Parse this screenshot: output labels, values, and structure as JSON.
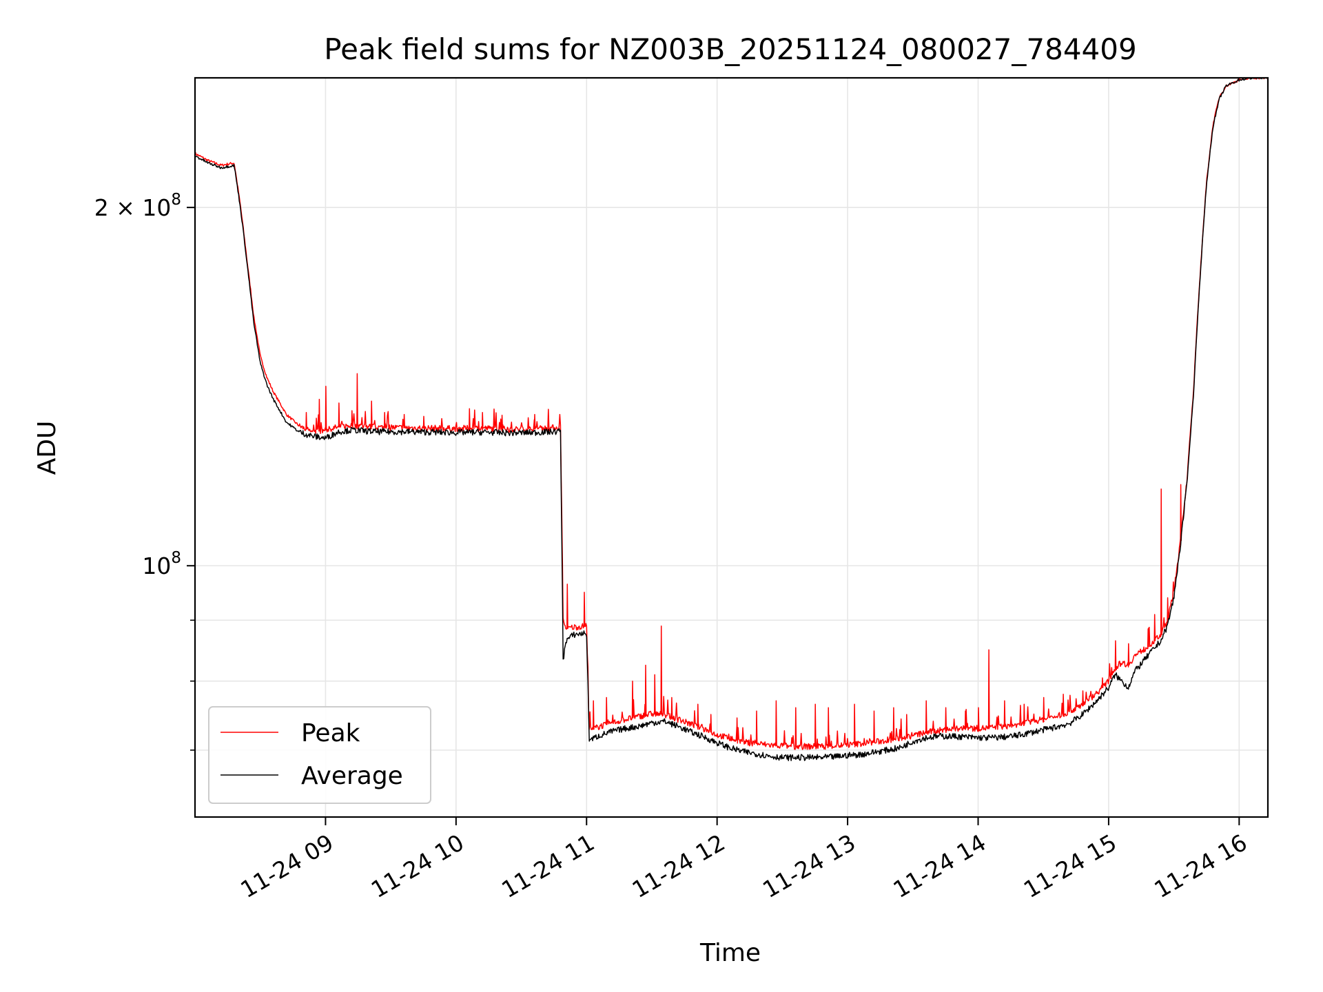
{
  "chart_data": {
    "type": "line",
    "title": "Peak field sums for NZ003B_20251124_080027_784409",
    "xlabel": "Time",
    "ylabel": "ADU",
    "x_unit": "hours (2025-11-24)",
    "xlim": [
      8.0,
      16.22
    ],
    "ylim": [
      61500000,
      257000000
    ],
    "yscale": "log",
    "grid": true,
    "legend_position": "lower-left",
    "x_ticks": [
      {
        "value": 9,
        "label": "11-24 09"
      },
      {
        "value": 10,
        "label": "11-24 10"
      },
      {
        "value": 11,
        "label": "11-24 11"
      },
      {
        "value": 12,
        "label": "11-24 12"
      },
      {
        "value": 13,
        "label": "11-24 13"
      },
      {
        "value": 14,
        "label": "11-24 14"
      },
      {
        "value": 15,
        "label": "11-24 15"
      },
      {
        "value": 16,
        "label": "11-24 16"
      }
    ],
    "y_major_ticks": [
      {
        "value": 100000000,
        "base": "10",
        "exp": "8",
        "mult": ""
      },
      {
        "value": 200000000,
        "base": "10",
        "exp": "8",
        "mult": "2 × "
      }
    ],
    "y_minor_ticks": [
      70000000,
      80000000,
      90000000
    ],
    "series": [
      {
        "name": "Peak",
        "color": "#ff0000",
        "x": [
          8.0,
          8.1,
          8.2,
          8.3,
          8.35,
          8.4,
          8.45,
          8.5,
          8.55,
          8.6,
          8.65,
          8.7,
          8.8,
          8.9,
          9.0,
          9.1,
          9.2,
          9.3,
          9.4,
          9.6,
          9.8,
          10.0,
          10.2,
          10.4,
          10.6,
          10.8,
          10.82,
          10.84,
          10.9,
          11.0,
          11.02,
          11.04,
          11.1,
          11.2,
          11.3,
          11.4,
          11.5,
          11.6,
          11.7,
          11.8,
          11.9,
          12.0,
          12.1,
          12.2,
          12.3,
          12.4,
          12.5,
          12.6,
          12.7,
          12.8,
          12.9,
          13.0,
          13.1,
          13.2,
          13.3,
          13.4,
          13.5,
          13.6,
          13.7,
          13.8,
          13.9,
          14.0,
          14.1,
          14.2,
          14.3,
          14.4,
          14.5,
          14.6,
          14.7,
          14.8,
          14.9,
          15.0,
          15.05,
          15.1,
          15.15,
          15.2,
          15.3,
          15.4,
          15.45,
          15.5,
          15.55,
          15.6,
          15.65,
          15.7,
          15.75,
          15.8,
          15.85,
          15.9,
          16.0,
          16.1,
          16.22
        ],
        "y": [
          222000000,
          219000000,
          217000000,
          218000000,
          200000000,
          180000000,
          162000000,
          150000000,
          144000000,
          140000000,
          137000000,
          134000000,
          131000000,
          129500000,
          130000000,
          130800000,
          131200000,
          131000000,
          130700000,
          130600000,
          130500000,
          130400000,
          130500000,
          130200000,
          130300000,
          130700000,
          90000000,
          88500000,
          88800000,
          89000000,
          73000000,
          72800000,
          73300000,
          73800000,
          74300000,
          74700000,
          75100000,
          75000000,
          74300000,
          73600000,
          72900000,
          72100000,
          71600000,
          71100000,
          70900000,
          70700000,
          70600000,
          70500000,
          70500000,
          70500000,
          70600000,
          70700000,
          70900000,
          71100000,
          71300000,
          71600000,
          72000000,
          72400000,
          72700000,
          72900000,
          73000000,
          73000000,
          73100000,
          73300000,
          73500000,
          73900000,
          74300000,
          74700000,
          75400000,
          76500000,
          78000000,
          80000000,
          82000000,
          83000000,
          82500000,
          84000000,
          85500000,
          87500000,
          90000000,
          95000000,
          105000000,
          118000000,
          140000000,
          175000000,
          210000000,
          235000000,
          248000000,
          253000000,
          256000000,
          257000000,
          257000000
        ],
        "spikes": [
          [
            8.85,
            134500000
          ],
          [
            8.95,
            138000000
          ],
          [
            9.0,
            141500000
          ],
          [
            9.1,
            137000000
          ],
          [
            9.2,
            135000000
          ],
          [
            9.24,
            145000000
          ],
          [
            9.35,
            137500000
          ],
          [
            9.45,
            134500000
          ],
          [
            9.6,
            134000000
          ],
          [
            9.75,
            133500000
          ],
          [
            10.1,
            135500000
          ],
          [
            10.2,
            134500000
          ],
          [
            10.35,
            133800000
          ],
          [
            10.6,
            134000000
          ],
          [
            10.85,
            96500000
          ],
          [
            10.98,
            95000000
          ],
          [
            11.05,
            77000000
          ],
          [
            11.15,
            77500000
          ],
          [
            11.35,
            80000000
          ],
          [
            11.45,
            82500000
          ],
          [
            11.52,
            81000000
          ],
          [
            11.57,
            89000000
          ],
          [
            11.65,
            77500000
          ],
          [
            11.85,
            76500000
          ],
          [
            11.95,
            75000000
          ],
          [
            12.15,
            74500000
          ],
          [
            12.3,
            75500000
          ],
          [
            12.45,
            77000000
          ],
          [
            12.6,
            76000000
          ],
          [
            12.75,
            76500000
          ],
          [
            12.85,
            76000000
          ],
          [
            13.05,
            76500000
          ],
          [
            13.2,
            75500000
          ],
          [
            13.35,
            76000000
          ],
          [
            13.45,
            75000000
          ],
          [
            13.6,
            77000000
          ],
          [
            13.75,
            76000000
          ],
          [
            13.9,
            75500000
          ],
          [
            14.0,
            76000000
          ],
          [
            14.08,
            85000000
          ],
          [
            14.2,
            77000000
          ],
          [
            14.35,
            76500000
          ],
          [
            14.5,
            77500000
          ],
          [
            14.65,
            78000000
          ],
          [
            14.8,
            78500000
          ],
          [
            14.95,
            80500000
          ],
          [
            15.05,
            86500000
          ],
          [
            15.15,
            86000000
          ],
          [
            15.3,
            88500000
          ],
          [
            15.35,
            91000000
          ],
          [
            15.4,
            116000000
          ],
          [
            15.45,
            94000000
          ],
          [
            15.55,
            117000000
          ]
        ]
      },
      {
        "name": "Average",
        "color": "#000000",
        "x": [
          8.0,
          8.1,
          8.2,
          8.3,
          8.35,
          8.4,
          8.45,
          8.5,
          8.55,
          8.6,
          8.65,
          8.7,
          8.8,
          8.9,
          9.0,
          9.1,
          9.2,
          9.3,
          9.4,
          9.6,
          9.8,
          10.0,
          10.2,
          10.4,
          10.6,
          10.8,
          10.82,
          10.84,
          10.9,
          11.0,
          11.02,
          11.04,
          11.1,
          11.2,
          11.3,
          11.4,
          11.5,
          11.6,
          11.7,
          11.8,
          11.9,
          12.0,
          12.1,
          12.2,
          12.3,
          12.4,
          12.5,
          12.6,
          12.7,
          12.8,
          12.9,
          13.0,
          13.1,
          13.2,
          13.3,
          13.4,
          13.5,
          13.6,
          13.7,
          13.8,
          13.9,
          14.0,
          14.1,
          14.2,
          14.3,
          14.4,
          14.5,
          14.6,
          14.7,
          14.8,
          14.9,
          15.0,
          15.05,
          15.1,
          15.15,
          15.2,
          15.3,
          15.4,
          15.45,
          15.5,
          15.55,
          15.6,
          15.65,
          15.7,
          15.75,
          15.8,
          15.85,
          15.9,
          16.0,
          16.1,
          16.22
        ],
        "y": [
          221000000,
          218000000,
          216000000,
          217000000,
          199000000,
          179000000,
          160000000,
          148000000,
          142000000,
          138000000,
          135000000,
          132000000,
          129500000,
          128500000,
          128000000,
          129600000,
          130000000,
          129800000,
          129600000,
          129600000,
          129500000,
          129400000,
          129500000,
          129300000,
          129400000,
          129700000,
          83000000,
          86500000,
          87500000,
          87800000,
          71600000,
          71500000,
          72000000,
          72600000,
          73000000,
          73300000,
          73800000,
          74000000,
          73300000,
          72500000,
          71800000,
          71000000,
          70300000,
          69800000,
          69500000,
          69200000,
          69000000,
          69000000,
          69000000,
          69000000,
          69100000,
          69300000,
          69400000,
          69700000,
          70000000,
          70300000,
          71200000,
          71700000,
          71900000,
          71900000,
          71800000,
          71700000,
          71700000,
          71800000,
          72000000,
          72400000,
          72800000,
          73200000,
          73700000,
          75000000,
          76800000,
          79000000,
          81000000,
          80000000,
          79000000,
          81500000,
          84000000,
          86500000,
          89000000,
          94000000,
          104000000,
          117000000,
          139000000,
          174000000,
          209000000,
          234000000,
          247000000,
          253000000,
          256000000,
          257000000,
          257000000
        ]
      }
    ]
  }
}
